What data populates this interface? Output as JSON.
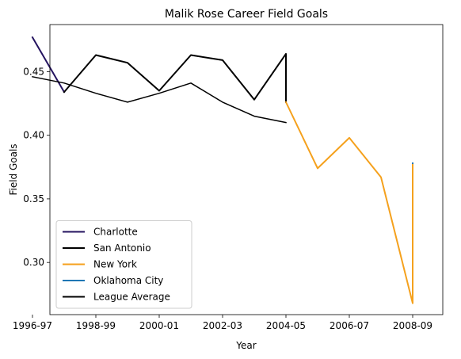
{
  "chart_data": {
    "type": "line",
    "title": "Malik Rose Career Field Goals",
    "xlabel": "Year",
    "ylabel": "Field Goals",
    "xlim": [
      1996.55,
      2008.95
    ],
    "ylim": [
      0.259,
      0.487
    ],
    "x_ticks": [
      {
        "value": 1996,
        "label": "1996-97"
      },
      {
        "value": 1998,
        "label": "1998-99"
      },
      {
        "value": 2000,
        "label": "2000-01"
      },
      {
        "value": 2002,
        "label": "2002-03"
      },
      {
        "value": 2004,
        "label": "2004-05"
      },
      {
        "value": 2006,
        "label": "2006-07"
      },
      {
        "value": 2008,
        "label": "2008-09"
      }
    ],
    "y_ticks": [
      {
        "value": 0.3,
        "label": "0.30"
      },
      {
        "value": 0.35,
        "label": "0.35"
      },
      {
        "value": 0.4,
        "label": "0.40"
      },
      {
        "value": 0.45,
        "label": "0.45"
      }
    ],
    "grid": false,
    "legend_position": "lower-left",
    "series": [
      {
        "name": "Charlotte",
        "color": "#24135f",
        "width": 2,
        "points": [
          [
            1996,
            0.477
          ],
          [
            1997,
            0.434
          ]
        ]
      },
      {
        "name": "San Antonio",
        "color": "#000000",
        "width": 2,
        "points": [
          [
            1997,
            0.434
          ],
          [
            1998,
            0.463
          ],
          [
            1999,
            0.457
          ],
          [
            2000,
            0.435
          ],
          [
            2001,
            0.463
          ],
          [
            2002,
            0.459
          ],
          [
            2003,
            0.428
          ],
          [
            2004,
            0.464
          ],
          [
            2004,
            0.426
          ]
        ]
      },
      {
        "name": "New York",
        "color": "#f5a11d",
        "width": 2,
        "points": [
          [
            2004,
            0.426
          ],
          [
            2005,
            0.374
          ],
          [
            2006,
            0.398
          ],
          [
            2007,
            0.367
          ],
          [
            2008,
            0.268
          ],
          [
            2008,
            0.378
          ]
        ]
      },
      {
        "name": "Oklahoma City",
        "color": "#1f77b4",
        "width": 2,
        "points": [
          [
            2008,
            0.378
          ],
          [
            2008,
            0.378
          ]
        ]
      },
      {
        "name": "League Average",
        "color": "#000000",
        "width": 1.5,
        "points": [
          [
            1996,
            0.446
          ],
          [
            1997,
            0.441
          ],
          [
            1998,
            0.433
          ],
          [
            1999,
            0.426
          ],
          [
            2000,
            0.433
          ],
          [
            2001,
            0.441
          ],
          [
            2002,
            0.426
          ],
          [
            2003,
            0.415
          ],
          [
            2004,
            0.41
          ]
        ]
      }
    ],
    "legend": [
      {
        "label": "Charlotte",
        "color": "#24135f"
      },
      {
        "label": "San Antonio",
        "color": "#000000"
      },
      {
        "label": "New York",
        "color": "#f5a11d"
      },
      {
        "label": "Oklahoma City",
        "color": "#1f77b4"
      },
      {
        "label": "League Average",
        "color": "#000000"
      }
    ]
  }
}
